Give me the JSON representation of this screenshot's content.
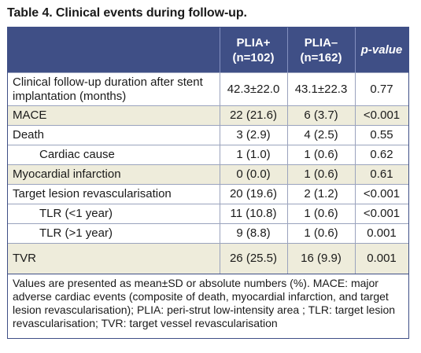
{
  "title": "Table 4. Clinical events during follow-up.",
  "columns": [
    {
      "label_line1": "",
      "label_line2": ""
    },
    {
      "label_line1": "PLIA+",
      "label_line2": "(n=102)"
    },
    {
      "label_line1": "PLIA–",
      "label_line2": "(n=162)"
    },
    {
      "label_line1": "p-value",
      "label_line2": ""
    }
  ],
  "rows": [
    {
      "label": "Clinical follow-up duration after stent implantation (months)",
      "plia_pos": "42.3±22.0",
      "plia_neg": "43.1±22.3",
      "p": "0.77"
    },
    {
      "label": "MACE",
      "plia_pos": "22 (21.6)",
      "plia_neg": "6 (3.7)",
      "p": "<0.001"
    },
    {
      "label": "Death",
      "plia_pos": "3 (2.9)",
      "plia_neg": "4 (2.5)",
      "p": "0.55"
    },
    {
      "label": "Cardiac cause",
      "plia_pos": "1 (1.0)",
      "plia_neg": "1 (0.6)",
      "p": "0.62"
    },
    {
      "label": "Myocardial infarction",
      "plia_pos": "0 (0.0)",
      "plia_neg": "1 (0.6)",
      "p": "0.61"
    },
    {
      "label": "Target lesion revascularisation",
      "plia_pos": "20 (19.6)",
      "plia_neg": "2 (1.2)",
      "p": "<0.001"
    },
    {
      "label": "TLR (<1 year)",
      "plia_pos": "11 (10.8)",
      "plia_neg": "1 (0.6)",
      "p": "<0.001"
    },
    {
      "label": "TLR (>1 year)",
      "plia_pos": "9 (8.8)",
      "plia_neg": "1 (0.6)",
      "p": "0.001"
    },
    {
      "label": "TVR",
      "plia_pos": "26 (25.5)",
      "plia_neg": "16 (9.9)",
      "p": "0.001"
    }
  ],
  "footnote": "Values are presented as mean±SD or absolute numbers (%). MACE: major adverse cardiac events (composite of death, myocardial infarction, and target lesion revascularisation); PLIA: peri-strut low-intensity area ; TLR: target lesion revascularisation; TVR: target vessel revascularisation",
  "colors": {
    "header_bg": "#3f4f86",
    "shaded_row_bg": "#eeecdb",
    "border": "#9aa3bd"
  }
}
